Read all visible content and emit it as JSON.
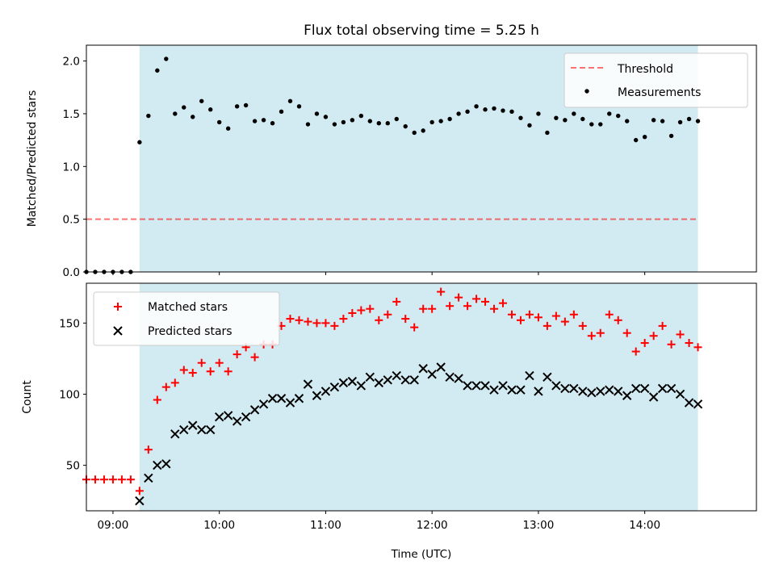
{
  "figure": {
    "title": "Flux total observing time = 5.25 h",
    "xlabel": "Time (UTC)",
    "x_ticks": [
      "09:00",
      "10:00",
      "11:00",
      "12:00",
      "13:00",
      "14:00"
    ]
  },
  "colors": {
    "shade": "#add8e6",
    "threshold": "#ff0000",
    "matched": "#ff0000",
    "predicted": "#000000",
    "measurement": "#000000"
  },
  "chart_data": [
    {
      "type": "scatter",
      "ylabel": "Matched/Predicted stars",
      "xlim": [
        "08:45",
        "15:03"
      ],
      "ylim": [
        0,
        2.15
      ],
      "y_ticks": [
        "0.0",
        "0.5",
        "1.0",
        "1.5",
        "2.0"
      ],
      "shaded_span": [
        "09:15",
        "14:30"
      ],
      "legend": {
        "placement": "top-right",
        "entries": [
          "Threshold",
          "Measurements"
        ]
      },
      "threshold": {
        "name": "Threshold",
        "style": "dashed",
        "y": 0.5,
        "x_range": [
          "08:45",
          "14:30"
        ]
      },
      "series": [
        {
          "name": "Measurements",
          "marker": "dot",
          "x": [
            "08:45",
            "08:50",
            "08:55",
            "09:00",
            "09:05",
            "09:10",
            "09:15",
            "09:20",
            "09:25",
            "09:30",
            "09:35",
            "09:40",
            "09:45",
            "09:50",
            "09:55",
            "10:00",
            "10:05",
            "10:10",
            "10:15",
            "10:20",
            "10:25",
            "10:30",
            "10:35",
            "10:40",
            "10:45",
            "10:50",
            "10:55",
            "11:00",
            "11:05",
            "11:10",
            "11:15",
            "11:20",
            "11:25",
            "11:30",
            "11:35",
            "11:40",
            "11:45",
            "11:50",
            "11:55",
            "12:00",
            "12:05",
            "12:10",
            "12:15",
            "12:20",
            "12:25",
            "12:30",
            "12:35",
            "12:40",
            "12:45",
            "12:50",
            "12:55",
            "13:00",
            "13:05",
            "13:10",
            "13:15",
            "13:20",
            "13:25",
            "13:30",
            "13:35",
            "13:40",
            "13:45",
            "13:50",
            "13:55",
            "14:00",
            "14:05",
            "14:10",
            "14:15",
            "14:20",
            "14:25",
            "14:30"
          ],
          "y": [
            0,
            0,
            0,
            0,
            0,
            0,
            1.23,
            1.48,
            1.91,
            2.02,
            1.5,
            1.56,
            1.47,
            1.62,
            1.54,
            1.42,
            1.36,
            1.57,
            1.58,
            1.43,
            1.44,
            1.41,
            1.52,
            1.62,
            1.57,
            1.4,
            1.5,
            1.47,
            1.4,
            1.42,
            1.44,
            1.48,
            1.43,
            1.41,
            1.41,
            1.45,
            1.38,
            1.32,
            1.34,
            1.42,
            1.43,
            1.45,
            1.5,
            1.52,
            1.57,
            1.54,
            1.55,
            1.53,
            1.52,
            1.46,
            1.39,
            1.5,
            1.32,
            1.46,
            1.44,
            1.5,
            1.45,
            1.4,
            1.4,
            1.5,
            1.48,
            1.43,
            1.25,
            1.28,
            1.44,
            1.43,
            1.29,
            1.42,
            1.45,
            1.43
          ]
        }
      ]
    },
    {
      "type": "scatter",
      "ylabel": "Count",
      "xlim": [
        "08:45",
        "15:03"
      ],
      "ylim": [
        18,
        178
      ],
      "y_ticks": [
        "50",
        "100",
        "150"
      ],
      "shaded_span": [
        "09:15",
        "14:30"
      ],
      "legend": {
        "placement": "top-left",
        "entries": [
          "Matched stars",
          "Predicted stars"
        ]
      },
      "series": [
        {
          "name": "Matched stars",
          "marker": "plus",
          "x": [
            "08:45",
            "08:50",
            "08:55",
            "09:00",
            "09:05",
            "09:10",
            "09:15",
            "09:20",
            "09:25",
            "09:30",
            "09:35",
            "09:40",
            "09:45",
            "09:50",
            "09:55",
            "10:00",
            "10:05",
            "10:10",
            "10:15",
            "10:20",
            "10:25",
            "10:30",
            "10:35",
            "10:40",
            "10:45",
            "10:50",
            "10:55",
            "11:00",
            "11:05",
            "11:10",
            "11:15",
            "11:20",
            "11:25",
            "11:30",
            "11:35",
            "11:40",
            "11:45",
            "11:50",
            "11:55",
            "12:00",
            "12:05",
            "12:10",
            "12:15",
            "12:20",
            "12:25",
            "12:30",
            "12:35",
            "12:40",
            "12:45",
            "12:50",
            "12:55",
            "13:00",
            "13:05",
            "13:10",
            "13:15",
            "13:20",
            "13:25",
            "13:30",
            "13:35",
            "13:40",
            "13:45",
            "13:50",
            "13:55",
            "14:00",
            "14:05",
            "14:10",
            "14:15",
            "14:20",
            "14:25",
            "14:30"
          ],
          "y": [
            40,
            40,
            40,
            40,
            40,
            40,
            32,
            61,
            96,
            105,
            108,
            117,
            115,
            122,
            116,
            122,
            116,
            128,
            133,
            126,
            135,
            135,
            148,
            153,
            152,
            151,
            150,
            150,
            148,
            153,
            157,
            159,
            160,
            152,
            156,
            165,
            153,
            147,
            160,
            160,
            172,
            162,
            168,
            162,
            167,
            165,
            160,
            164,
            156,
            152,
            156,
            154,
            148,
            155,
            151,
            156,
            148,
            141,
            143,
            156,
            152,
            143,
            130,
            136,
            141,
            148,
            135,
            142,
            136,
            133
          ]
        },
        {
          "name": "Predicted stars",
          "marker": "x",
          "x": [
            "09:15",
            "09:20",
            "09:25",
            "09:30",
            "09:35",
            "09:40",
            "09:45",
            "09:50",
            "09:55",
            "10:00",
            "10:05",
            "10:10",
            "10:15",
            "10:20",
            "10:25",
            "10:30",
            "10:35",
            "10:40",
            "10:45",
            "10:50",
            "10:55",
            "11:00",
            "11:05",
            "11:10",
            "11:15",
            "11:20",
            "11:25",
            "11:30",
            "11:35",
            "11:40",
            "11:45",
            "11:50",
            "11:55",
            "12:00",
            "12:05",
            "12:10",
            "12:15",
            "12:20",
            "12:25",
            "12:30",
            "12:35",
            "12:40",
            "12:45",
            "12:50",
            "12:55",
            "13:00",
            "13:05",
            "13:10",
            "13:15",
            "13:20",
            "13:25",
            "13:30",
            "13:35",
            "13:40",
            "13:45",
            "13:50",
            "13:55",
            "14:00",
            "14:05",
            "14:10",
            "14:15",
            "14:20",
            "14:25",
            "14:30"
          ],
          "y": [
            25,
            41,
            50,
            51,
            72,
            75,
            78,
            75,
            75,
            84,
            85,
            81,
            84,
            89,
            93,
            97,
            97,
            94,
            97,
            107,
            99,
            102,
            105,
            108,
            109,
            106,
            112,
            108,
            110,
            113,
            110,
            110,
            118,
            114,
            119,
            112,
            111,
            106,
            106,
            106,
            103,
            106,
            103,
            103,
            113,
            102,
            112,
            106,
            104,
            104,
            102,
            101,
            102,
            103,
            102,
            99,
            104,
            104,
            98,
            104,
            104,
            100,
            94,
            93
          ]
        }
      ]
    }
  ]
}
